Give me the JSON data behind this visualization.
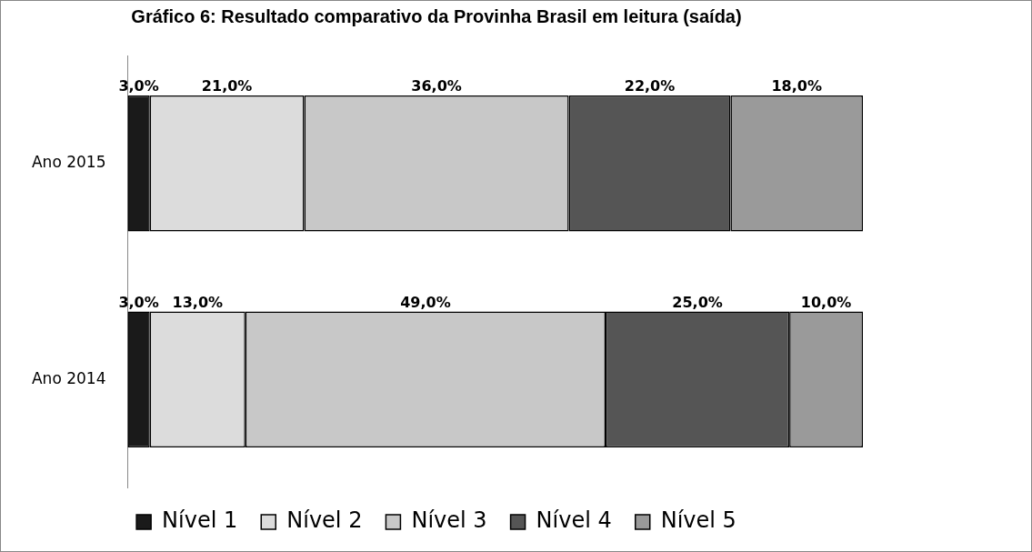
{
  "chart_data": {
    "type": "bar",
    "orientation": "horizontal",
    "stacked": true,
    "title": "Gráfico 6: Resultado comparativo da Provinha Brasil em leitura (saída)",
    "categories": [
      "Ano 2015",
      "Ano 2014"
    ],
    "legend": "bottom",
    "tick_labels": "y",
    "series": [
      {
        "name": "Nível 1",
        "color": "#1a1a1a",
        "values": [
          3,
          3
        ],
        "value_labels": [
          "3,0%",
          "3,0%"
        ]
      },
      {
        "name": "Nível 2",
        "color": "#dcdcdc",
        "values": [
          21,
          13
        ],
        "value_labels": [
          "21,0%",
          "13,0%"
        ]
      },
      {
        "name": "Nível 3",
        "color": "#c8c8c8",
        "values": [
          36,
          49
        ],
        "value_labels": [
          "36,0%",
          "49,0%"
        ]
      },
      {
        "name": "Nível 4",
        "color": "#555555",
        "values": [
          22,
          25
        ],
        "value_labels": [
          "22,0%",
          "25,0%"
        ]
      },
      {
        "name": "Nível 5",
        "color": "#9a9a9a",
        "values": [
          18,
          10
        ],
        "value_labels": [
          "18,0%",
          "10,0%"
        ]
      }
    ]
  }
}
